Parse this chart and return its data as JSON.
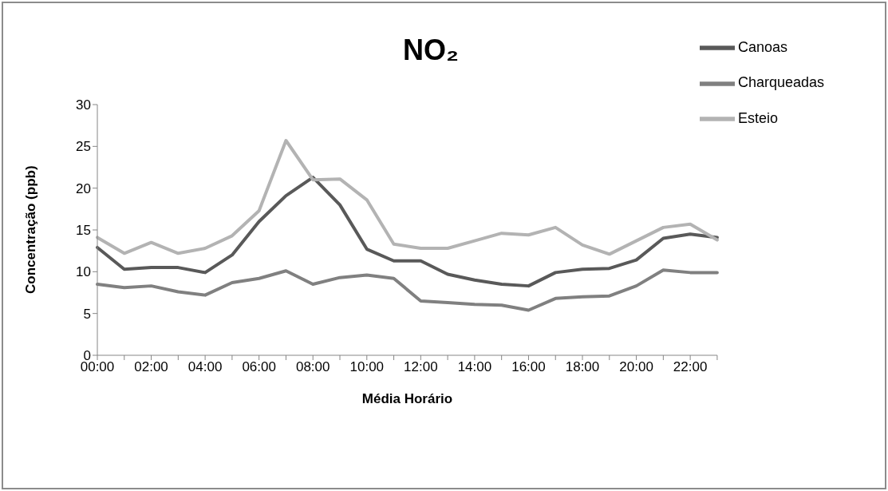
{
  "chart_data": {
    "type": "line",
    "title": "NO₂",
    "xlabel": "Média Horário",
    "ylabel": "Concentração (ppb)",
    "categories": [
      "00:00",
      null,
      "02:00",
      null,
      "04:00",
      null,
      "06:00",
      null,
      "08:00",
      null,
      "10:00",
      null,
      "12:00",
      null,
      "14:00",
      null,
      "16:00",
      null,
      "18:00",
      null,
      "20:00",
      null,
      "22:00",
      null
    ],
    "series": [
      {
        "name": "Canoas",
        "color": "#595959",
        "values": [
          12.9,
          10.3,
          10.5,
          10.5,
          9.9,
          12.0,
          16.0,
          19.1,
          21.3,
          18.0,
          12.7,
          11.3,
          11.3,
          9.7,
          9.0,
          8.5,
          8.3,
          9.9,
          10.3,
          10.4,
          11.4,
          14.0,
          14.5,
          14.1
        ]
      },
      {
        "name": "Esteio",
        "color": "#b3b3b3",
        "values": [
          14.1,
          12.2,
          13.5,
          12.2,
          12.8,
          14.3,
          17.3,
          25.7,
          21.0,
          21.1,
          18.6,
          13.3,
          12.8,
          12.8,
          13.7,
          14.6,
          14.4,
          15.3,
          13.2,
          12.1,
          13.7,
          15.3,
          15.7,
          13.8
        ]
      },
      {
        "name": "Charqueadas",
        "color": "#808080",
        "values": [
          8.5,
          8.1,
          8.3,
          7.6,
          7.2,
          8.7,
          9.2,
          10.1,
          8.5,
          9.3,
          9.6,
          9.2,
          6.5,
          6.3,
          6.1,
          6.0,
          5.4,
          6.8,
          7.0,
          7.1,
          8.3,
          10.2,
          9.9,
          9.9
        ]
      }
    ],
    "ylim": [
      0,
      30
    ],
    "yticks": [
      0,
      5,
      10,
      15,
      20,
      25,
      30
    ],
    "grid": false,
    "legend": "top right",
    "marker": "none",
    "line_style": "solid"
  }
}
